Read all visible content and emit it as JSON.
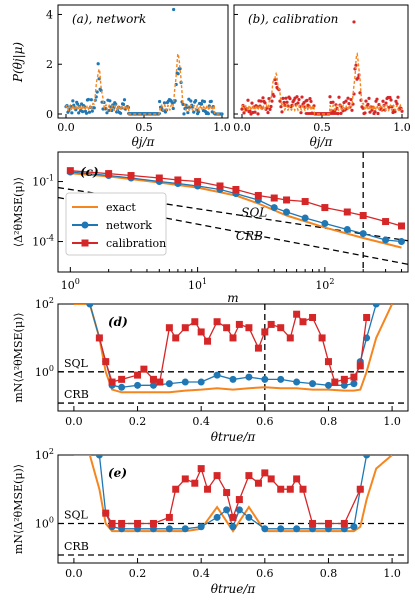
{
  "colors": {
    "exact": "#f5861f",
    "network": "#1f77b4",
    "calibration": "#d62728"
  },
  "chart_data": [
    {
      "id": "a",
      "type": "scatter",
      "panel_label": "(a), network",
      "ylabel": "P(θj|μ)",
      "xlabel": "θj/π",
      "xlim": [
        0,
        1
      ],
      "ylim": [
        0,
        4.3
      ],
      "xticks": [
        "0.0",
        "0.5",
        "1.0"
      ],
      "yticks": [
        "0",
        "2",
        "4"
      ],
      "grid": false,
      "peaks": [
        {
          "center": 0.21,
          "height": 1.5,
          "width": 0.015
        },
        {
          "center": 0.72,
          "height": 2.1,
          "width": 0.015
        }
      ],
      "scatter_outlier": {
        "x": 0.69,
        "y": 4.2
      },
      "noise_ranges": [
        [
          0.0,
          0.4,
          0.9
        ],
        [
          0.6,
          0.95,
          1.0
        ]
      ]
    },
    {
      "id": "b",
      "type": "scatter",
      "panel_label": "(b), calibration",
      "xlabel": "θj/π",
      "xlim": [
        0,
        1
      ],
      "ylim": [
        0,
        4.3
      ],
      "xticks": [
        "0.0",
        "0.5",
        "1.0"
      ],
      "grid": false,
      "peaks": [
        {
          "center": 0.21,
          "height": 1.3,
          "width": 0.02
        },
        {
          "center": 0.72,
          "height": 2.1,
          "width": 0.015
        }
      ],
      "scatter_outlier": {
        "x": 0.7,
        "y": 3.7
      },
      "noise_ranges": [
        [
          0.0,
          0.45,
          1.0
        ],
        [
          0.55,
          1.0,
          1.0
        ]
      ]
    },
    {
      "id": "c",
      "type": "line",
      "panel_label": "(c)",
      "xlabel": "m",
      "ylabel": "⟨Δ²θMSE(μ)⟩",
      "xscale": "log",
      "yscale": "log",
      "xlim": [
        0.8,
        450
      ],
      "ylim": [
        3e-06,
        3
      ],
      "xtick_values": [
        1,
        10,
        100
      ],
      "xticks": [
        "10^0",
        "10^1",
        "10^2"
      ],
      "ytick_values": [
        0.1,
        0.0001
      ],
      "yticks": [
        "10^-1",
        "10^-4"
      ],
      "vline_x": 200,
      "annotations": [
        "SQL",
        "CRB"
      ],
      "legend": {
        "placement": "center-left",
        "entries": [
          "exact",
          "network",
          "calibration"
        ]
      },
      "reference_lines": [
        {
          "name": "SQL",
          "x": [
            0.8,
            450
          ],
          "y": [
            0.05,
            0.00011
          ]
        },
        {
          "name": "CRB",
          "x": [
            0.8,
            450
          ],
          "y": [
            0.016,
            7.3e-06
          ]
        }
      ],
      "series": [
        {
          "name": "exact",
          "x": [
            1,
            2,
            5,
            10,
            20,
            30,
            50,
            100,
            200,
            400
          ],
          "y": [
            0.26,
            0.18,
            0.09,
            0.05,
            0.02,
            0.008,
            0.002,
            0.0005,
            0.00015,
            5e-05
          ]
        },
        {
          "name": "network",
          "x": [
            1,
            2,
            3,
            5,
            7,
            10,
            15,
            20,
            30,
            40,
            50,
            70,
            100,
            150,
            200,
            300,
            400
          ],
          "y": [
            0.3,
            0.2,
            0.15,
            0.1,
            0.08,
            0.06,
            0.04,
            0.025,
            0.012,
            0.005,
            0.003,
            0.0015,
            0.0008,
            0.0004,
            0.00025,
            0.00012,
            0.0001
          ]
        },
        {
          "name": "calibration",
          "x": [
            1,
            2,
            3,
            5,
            7,
            10,
            15,
            20,
            30,
            40,
            50,
            70,
            100,
            150,
            200,
            300,
            400
          ],
          "y": [
            0.35,
            0.25,
            0.2,
            0.15,
            0.12,
            0.1,
            0.06,
            0.04,
            0.02,
            0.015,
            0.012,
            0.01,
            0.005,
            0.003,
            0.002,
            0.001,
            0.0006
          ]
        }
      ]
    },
    {
      "id": "d",
      "type": "line",
      "panel_label": "(d)",
      "xlabel": "θtrue/π",
      "ylabel": "mN⟨Δ²θMSE(μ)⟩",
      "yscale": "log",
      "xlim": [
        -0.05,
        1.05
      ],
      "ylim": [
        0.07,
        100
      ],
      "xticks": [
        "0.0",
        "0.2",
        "0.4",
        "0.6",
        "0.8",
        "1.0"
      ],
      "ytick_values": [
        1,
        100
      ],
      "yticks": [
        "10^0",
        "10^2"
      ],
      "vline_x": 0.6,
      "annotations": [
        "SQL",
        "CRB"
      ],
      "hlines": [
        {
          "name": "SQL",
          "y": 1
        },
        {
          "name": "CRB",
          "y": 0.12
        }
      ],
      "series": [
        {
          "name": "exact",
          "x": [
            0.0,
            0.05,
            0.08,
            0.1,
            0.12,
            0.15,
            0.2,
            0.25,
            0.3,
            0.35,
            0.4,
            0.45,
            0.5,
            0.55,
            0.6,
            0.65,
            0.7,
            0.75,
            0.8,
            0.85,
            0.88,
            0.9,
            0.92,
            0.95,
            1.0
          ],
          "y": [
            100,
            100,
            10,
            1,
            0.3,
            0.25,
            0.25,
            0.25,
            0.25,
            0.28,
            0.3,
            0.33,
            0.3,
            0.33,
            0.35,
            0.33,
            0.33,
            0.3,
            0.3,
            0.28,
            0.28,
            0.3,
            1,
            10,
            100
          ]
        },
        {
          "name": "network",
          "x": [
            0.05,
            0.08,
            0.1,
            0.12,
            0.15,
            0.2,
            0.25,
            0.3,
            0.35,
            0.4,
            0.45,
            0.5,
            0.55,
            0.6,
            0.65,
            0.7,
            0.75,
            0.8,
            0.85,
            0.88,
            0.9,
            0.92,
            0.95
          ],
          "y": [
            100,
            10,
            2,
            0.4,
            0.35,
            0.4,
            0.4,
            0.45,
            0.5,
            0.5,
            0.8,
            0.6,
            0.7,
            0.6,
            0.6,
            0.5,
            0.45,
            0.4,
            0.4,
            0.45,
            2,
            10,
            100
          ]
        },
        {
          "name": "calibration",
          "x": [
            0.08,
            0.1,
            0.12,
            0.15,
            0.2,
            0.22,
            0.25,
            0.27,
            0.3,
            0.32,
            0.35,
            0.38,
            0.4,
            0.42,
            0.45,
            0.48,
            0.5,
            0.52,
            0.55,
            0.58,
            0.6,
            0.62,
            0.65,
            0.68,
            0.7,
            0.72,
            0.75,
            0.78,
            0.8,
            0.82,
            0.85,
            0.88,
            0.9,
            0.92
          ],
          "y": [
            10,
            2,
            0.5,
            0.6,
            0.8,
            1.2,
            0.6,
            0.5,
            20,
            10,
            20,
            30,
            15,
            8,
            30,
            20,
            10,
            25,
            20,
            5,
            15,
            25,
            20,
            10,
            50,
            30,
            40,
            10,
            2,
            0.5,
            0.6,
            0.7,
            1.5,
            40
          ]
        }
      ]
    },
    {
      "id": "e",
      "type": "line",
      "panel_label": "(e)",
      "xlabel": "θtrue/π",
      "ylabel": "mN⟨Δ²θMSE(μ)⟩",
      "yscale": "log",
      "xlim": [
        -0.05,
        1.05
      ],
      "ylim": [
        0.07,
        100
      ],
      "xticks": [
        "0.0",
        "0.2",
        "0.4",
        "0.6",
        "0.8",
        "1.0"
      ],
      "ytick_values": [
        1,
        100
      ],
      "yticks": [
        "10^0",
        "10^2"
      ],
      "annotations": [
        "SQL",
        "CRB"
      ],
      "hlines": [
        {
          "name": "SQL",
          "y": 1
        },
        {
          "name": "CRB",
          "y": 0.12
        }
      ],
      "series": [
        {
          "name": "exact",
          "x": [
            0.0,
            0.05,
            0.08,
            0.1,
            0.12,
            0.15,
            0.2,
            0.25,
            0.3,
            0.35,
            0.4,
            0.45,
            0.5,
            0.55,
            0.6,
            0.65,
            0.7,
            0.75,
            0.8,
            0.85,
            0.88,
            0.9,
            0.92,
            0.95,
            1.0
          ],
          "y": [
            100,
            100,
            10,
            1,
            0.6,
            0.6,
            0.6,
            0.6,
            0.6,
            0.6,
            0.7,
            3,
            0.6,
            3,
            0.6,
            0.6,
            0.6,
            0.6,
            0.6,
            0.6,
            0.6,
            0.8,
            5,
            40,
            100
          ]
        },
        {
          "name": "network",
          "x": [
            0.08,
            0.1,
            0.12,
            0.15,
            0.2,
            0.25,
            0.3,
            0.35,
            0.4,
            0.45,
            0.48,
            0.5,
            0.52,
            0.55,
            0.6,
            0.65,
            0.7,
            0.75,
            0.8,
            0.85,
            0.88,
            0.9,
            0.92
          ],
          "y": [
            100,
            2,
            0.8,
            0.7,
            0.7,
            0.7,
            0.7,
            0.7,
            0.8,
            1.5,
            2.5,
            0.8,
            2.5,
            1.5,
            0.7,
            0.7,
            0.7,
            0.7,
            0.7,
            0.7,
            0.8,
            10,
            100
          ]
        },
        {
          "name": "calibration",
          "x": [
            0.1,
            0.12,
            0.15,
            0.2,
            0.25,
            0.3,
            0.32,
            0.35,
            0.38,
            0.4,
            0.42,
            0.45,
            0.48,
            0.5,
            0.52,
            0.55,
            0.58,
            0.6,
            0.62,
            0.65,
            0.68,
            0.7,
            0.72,
            0.75,
            0.8,
            0.85,
            0.9
          ],
          "y": [
            2,
            1,
            1,
            1,
            1,
            1.5,
            10,
            20,
            15,
            40,
            10,
            25,
            8,
            1.5,
            5,
            25,
            15,
            30,
            20,
            10,
            10,
            20,
            10,
            1,
            1,
            1,
            10
          ]
        }
      ]
    }
  ]
}
